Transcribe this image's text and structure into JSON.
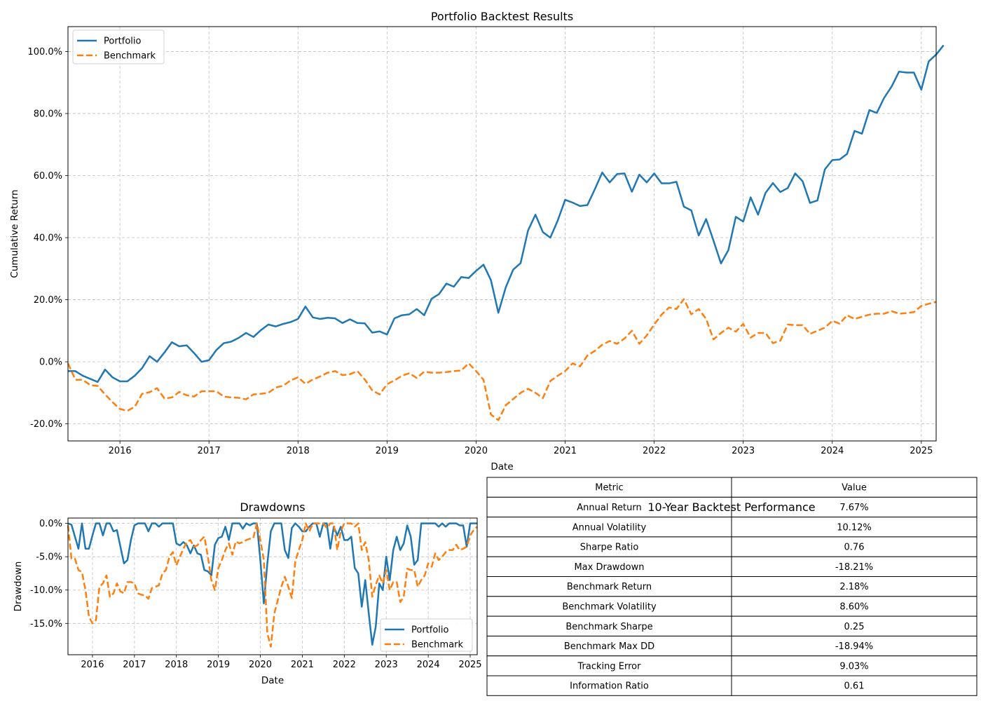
{
  "chart_data": [
    {
      "type": "line",
      "title": "Portfolio Backtest Results",
      "xlabel": "Date",
      "ylabel": "Cumulative Return",
      "xlim": [
        "2015-06",
        "2025-03"
      ],
      "ylim": [
        -0.255,
        1.08
      ],
      "yticks": [
        -0.2,
        0.0,
        0.2,
        0.4,
        0.6,
        0.8,
        1.0
      ],
      "ytick_labels": [
        "-20.0%",
        "0.0%",
        "20.0%",
        "40.0%",
        "60.0%",
        "80.0%",
        "100.0%"
      ],
      "xticks": [
        "2016-01",
        "2017-01",
        "2018-01",
        "2019-01",
        "2020-01",
        "2021-01",
        "2022-01",
        "2023-01",
        "2024-01",
        "2025-01"
      ],
      "xtick_labels": [
        "2016",
        "2017",
        "2018",
        "2019",
        "2020",
        "2021",
        "2022",
        "2023",
        "2024",
        "2025"
      ],
      "grid": true,
      "legend": "top-left",
      "start": "2015-06",
      "series": [
        {
          "name": "Portfolio",
          "color": "#1f77b4",
          "style": "solid",
          "values": [
            -0.03,
            -0.03,
            -0.045,
            -0.055,
            -0.065,
            -0.025,
            -0.05,
            -0.063,
            -0.063,
            -0.045,
            -0.02,
            0.018,
            0.0,
            0.03,
            0.063,
            0.05,
            0.053,
            0.028,
            0.0,
            0.005,
            0.038,
            0.06,
            0.065,
            0.077,
            0.093,
            0.08,
            0.102,
            0.12,
            0.114,
            0.122,
            0.128,
            0.138,
            0.178,
            0.143,
            0.138,
            0.142,
            0.14,
            0.125,
            0.137,
            0.125,
            0.124,
            0.094,
            0.098,
            0.088,
            0.14,
            0.15,
            0.153,
            0.17,
            0.15,
            0.203,
            0.218,
            0.252,
            0.242,
            0.273,
            0.27,
            0.293,
            0.313,
            0.263,
            0.158,
            0.24,
            0.297,
            0.318,
            0.423,
            0.474,
            0.418,
            0.4,
            0.455,
            0.522,
            0.513,
            0.502,
            0.505,
            0.556,
            0.61,
            0.578,
            0.605,
            0.607,
            0.548,
            0.603,
            0.578,
            0.607,
            0.575,
            0.575,
            0.58,
            0.5,
            0.488,
            0.407,
            0.46,
            0.39,
            0.317,
            0.36,
            0.467,
            0.452,
            0.53,
            0.474,
            0.544,
            0.576,
            0.547,
            0.56,
            0.607,
            0.582,
            0.512,
            0.52,
            0.62,
            0.65,
            0.652,
            0.67,
            0.744,
            0.735,
            0.811,
            0.802,
            0.851,
            0.887,
            0.935,
            0.932,
            0.932,
            0.877,
            0.968,
            0.99,
            1.02
          ]
        },
        {
          "name": "Benchmark",
          "color": "#ff7f0e",
          "style": "dashed",
          "values": [
            -0.005,
            -0.058,
            -0.058,
            -0.075,
            -0.078,
            -0.105,
            -0.13,
            -0.152,
            -0.158,
            -0.145,
            -0.103,
            -0.098,
            -0.085,
            -0.118,
            -0.115,
            -0.097,
            -0.108,
            -0.112,
            -0.095,
            -0.095,
            -0.095,
            -0.112,
            -0.115,
            -0.116,
            -0.121,
            -0.105,
            -0.103,
            -0.1,
            -0.083,
            -0.077,
            -0.06,
            -0.05,
            -0.071,
            -0.057,
            -0.047,
            -0.035,
            -0.03,
            -0.043,
            -0.04,
            -0.03,
            -0.057,
            -0.092,
            -0.105,
            -0.072,
            -0.06,
            -0.045,
            -0.037,
            -0.052,
            -0.032,
            -0.035,
            -0.035,
            -0.033,
            -0.03,
            -0.028,
            -0.005,
            -0.03,
            -0.058,
            -0.17,
            -0.188,
            -0.14,
            -0.12,
            -0.1,
            -0.087,
            -0.1,
            -0.117,
            -0.062,
            -0.045,
            -0.03,
            -0.005,
            -0.015,
            0.02,
            0.035,
            0.055,
            0.067,
            0.058,
            0.075,
            0.1,
            0.058,
            0.085,
            0.12,
            0.152,
            0.175,
            0.17,
            0.202,
            0.153,
            0.17,
            0.138,
            0.072,
            0.093,
            0.11,
            0.097,
            0.122,
            0.078,
            0.093,
            0.093,
            0.06,
            0.068,
            0.12,
            0.118,
            0.118,
            0.09,
            0.1,
            0.11,
            0.132,
            0.123,
            0.15,
            0.138,
            0.145,
            0.152,
            0.155,
            0.155,
            0.163,
            0.155,
            0.157,
            0.16,
            0.18,
            0.187,
            0.193
          ]
        }
      ]
    },
    {
      "type": "line",
      "title": "Drawdowns",
      "xlabel": "Date",
      "ylabel": "Drawdown",
      "xlim": [
        "2015-06",
        "2025-03"
      ],
      "ylim": [
        -0.197,
        0.008
      ],
      "yticks": [
        -0.15,
        -0.1,
        -0.05,
        0.0
      ],
      "ytick_labels": [
        "-15.0%",
        "-10.0%",
        "-5.0%",
        "0.0%"
      ],
      "xticks": [
        "2016-01",
        "2017-01",
        "2018-01",
        "2019-01",
        "2020-01",
        "2021-01",
        "2022-01",
        "2023-01",
        "2024-01",
        "2025-01"
      ],
      "xtick_labels": [
        "2016",
        "2017",
        "2018",
        "2019",
        "2020",
        "2021",
        "2022",
        "2023",
        "2024",
        "2025"
      ],
      "grid": true,
      "legend": "bottom-right",
      "start": "2015-06",
      "series": [
        {
          "name": "Portfolio",
          "color": "#1f77b4",
          "style": "solid",
          "values": [
            0.0,
            -0.002,
            -0.02,
            -0.038,
            0.0,
            -0.038,
            -0.038,
            -0.018,
            0.0,
            0.0,
            -0.018,
            0.0,
            0.0,
            -0.012,
            -0.01,
            -0.035,
            -0.06,
            -0.055,
            -0.025,
            -0.003,
            0.0,
            0.0,
            0.0,
            -0.012,
            0.0,
            0.0,
            -0.005,
            0.0,
            0.0,
            0.0,
            0.0,
            -0.03,
            -0.033,
            -0.028,
            -0.033,
            -0.045,
            -0.033,
            -0.045,
            -0.047,
            -0.07,
            -0.072,
            -0.078,
            -0.032,
            -0.022,
            -0.02,
            -0.005,
            -0.025,
            0.0,
            0.0,
            0.0,
            -0.008,
            0.0,
            -0.003,
            0.0,
            0.0,
            -0.055,
            -0.12,
            -0.06,
            -0.012,
            0.0,
            0.0,
            0.0,
            -0.04,
            -0.052,
            -0.007,
            0.0,
            -0.005,
            -0.012,
            -0.012,
            -0.005,
            0.0,
            0.0,
            -0.02,
            0.0,
            0.0,
            -0.038,
            -0.005,
            -0.018,
            -0.005,
            -0.025,
            -0.025,
            -0.02,
            -0.067,
            -0.075,
            -0.125,
            -0.085,
            -0.135,
            -0.182,
            -0.155,
            -0.09,
            -0.1,
            -0.05,
            -0.085,
            -0.04,
            -0.02,
            -0.04,
            -0.03,
            -0.003,
            -0.02,
            -0.062,
            -0.055,
            0.0,
            0.0,
            0.0,
            0.0,
            0.0,
            -0.005,
            0.0,
            -0.005,
            0.0,
            0.0,
            0.0,
            -0.003,
            -0.003,
            -0.035,
            0.0,
            0.0,
            0.0
          ]
        },
        {
          "name": "Benchmark",
          "color": "#ff7f0e",
          "style": "dashed",
          "values": [
            -0.003,
            -0.053,
            -0.053,
            -0.07,
            -0.073,
            -0.1,
            -0.14,
            -0.15,
            -0.145,
            -0.095,
            -0.09,
            -0.078,
            -0.11,
            -0.105,
            -0.09,
            -0.102,
            -0.105,
            -0.088,
            -0.088,
            -0.09,
            -0.105,
            -0.107,
            -0.108,
            -0.113,
            -0.097,
            -0.095,
            -0.093,
            -0.075,
            -0.07,
            -0.05,
            -0.043,
            -0.063,
            -0.05,
            -0.038,
            -0.028,
            -0.025,
            -0.035,
            -0.033,
            -0.025,
            -0.02,
            -0.05,
            -0.085,
            -0.1,
            -0.067,
            -0.055,
            -0.04,
            -0.03,
            -0.047,
            -0.027,
            -0.03,
            -0.028,
            -0.025,
            -0.023,
            -0.022,
            0.0,
            -0.025,
            -0.055,
            -0.165,
            -0.185,
            -0.135,
            -0.115,
            -0.095,
            -0.08,
            -0.095,
            -0.112,
            -0.057,
            -0.04,
            -0.025,
            0.0,
            -0.012,
            0.0,
            0.0,
            0.0,
            0.0,
            -0.007,
            0.0,
            0.0,
            -0.04,
            -0.012,
            0.0,
            0.0,
            0.0,
            -0.005,
            0.0,
            -0.04,
            -0.028,
            -0.055,
            -0.11,
            -0.092,
            -0.078,
            -0.09,
            -0.07,
            -0.1,
            -0.088,
            -0.088,
            -0.118,
            -0.11,
            -0.068,
            -0.07,
            -0.07,
            -0.095,
            -0.085,
            -0.078,
            -0.06,
            -0.065,
            -0.045,
            -0.055,
            -0.05,
            -0.043,
            -0.04,
            -0.04,
            -0.032,
            -0.04,
            -0.038,
            -0.035,
            -0.018,
            -0.01,
            -0.005
          ]
        }
      ]
    },
    {
      "type": "table",
      "title": "10-Year Backtest Performance",
      "columns": [
        "Metric",
        "Value"
      ],
      "rows": [
        [
          "Annual Return",
          "7.67%"
        ],
        [
          "Annual Volatility",
          "10.12%"
        ],
        [
          "Sharpe Ratio",
          "0.76"
        ],
        [
          "Max Drawdown",
          "-18.21%"
        ],
        [
          "Benchmark Return",
          "2.18%"
        ],
        [
          "Benchmark Volatility",
          "8.60%"
        ],
        [
          "Benchmark Sharpe",
          "0.25"
        ],
        [
          "Benchmark Max DD",
          "-18.94%"
        ],
        [
          "Tracking Error",
          "9.03%"
        ],
        [
          "Information Ratio",
          "0.61"
        ]
      ]
    }
  ]
}
